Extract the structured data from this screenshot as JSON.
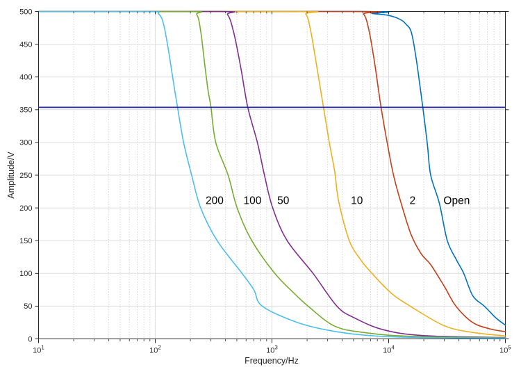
{
  "figure": {
    "background": "#ffffff"
  },
  "chart_data": {
    "type": "line",
    "title": "",
    "xlabel": "Frequency/Hz",
    "ylabel": "Amplitude/V",
    "x_scale": "log",
    "xlim": [
      10,
      100000
    ],
    "ylim": [
      0,
      500
    ],
    "y_ticks": [
      0,
      50,
      100,
      150,
      200,
      250,
      300,
      350,
      400,
      450,
      500
    ],
    "x_tick_base": "10",
    "x_tick_decades": [
      1,
      2,
      3,
      4,
      5
    ],
    "minor_multipliers": [
      2,
      3,
      4,
      5,
      6,
      7,
      8,
      9
    ],
    "grid": {
      "major_color": "#dedede",
      "minor_color": "#c4c4c4",
      "minor_style": "dotted"
    },
    "axis_color": "#262626",
    "legend_position": "none",
    "reference_line": {
      "value": 353.6,
      "color": "#2222b2",
      "description": "horizontal line at 500/sqrt(2)"
    },
    "series": [
      {
        "name": "200",
        "label": "200",
        "color": "#4DBEEE",
        "label_f": 270,
        "label_a": 212,
        "points": [
          [
            10,
            500
          ],
          [
            85,
            500
          ],
          [
            107,
            496
          ],
          [
            118,
            480
          ],
          [
            130,
            440
          ],
          [
            142,
            396
          ],
          [
            155,
            354
          ],
          [
            175,
            300
          ],
          [
            205,
            250
          ],
          [
            245,
            200
          ],
          [
            339,
            150
          ],
          [
            555,
            100
          ],
          [
            700,
            75
          ],
          [
            826,
            50
          ],
          [
            1650,
            25
          ],
          [
            3300,
            12
          ],
          [
            7000,
            5
          ],
          [
            20000,
            2
          ],
          [
            100000,
            1
          ]
        ]
      },
      {
        "name": "100",
        "label": "100",
        "color": "#77AC30",
        "label_f": 570,
        "label_a": 212,
        "points": [
          [
            10,
            500
          ],
          [
            190,
            500
          ],
          [
            227,
            495
          ],
          [
            245,
            470
          ],
          [
            265,
            420
          ],
          [
            283,
            380
          ],
          [
            300,
            354
          ],
          [
            330,
            300
          ],
          [
            421,
            250
          ],
          [
            503,
            200
          ],
          [
            672,
            150
          ],
          [
            1058,
            100
          ],
          [
            1500,
            72
          ],
          [
            2040,
            50
          ],
          [
            3400,
            20
          ],
          [
            6000,
            10
          ],
          [
            15000,
            4
          ],
          [
            100000,
            1.5
          ]
        ]
      },
      {
        "name": "50",
        "label": "50",
        "color": "#7E2F8E",
        "label_f": 1110,
        "label_a": 212,
        "points": [
          [
            10,
            500
          ],
          [
            350,
            500
          ],
          [
            417,
            495
          ],
          [
            470,
            468
          ],
          [
            540,
            415
          ],
          [
            620,
            354
          ],
          [
            750,
            300
          ],
          [
            862,
            250
          ],
          [
            1015,
            200
          ],
          [
            1350,
            150
          ],
          [
            2250,
            100
          ],
          [
            3600,
            50
          ],
          [
            5100,
            32
          ],
          [
            9000,
            14
          ],
          [
            20000,
            5
          ],
          [
            100000,
            2
          ]
        ]
      },
      {
        "name": "10",
        "label": "10",
        "color": "#EDB120",
        "label_f": 4750,
        "label_a": 212,
        "points": [
          [
            10,
            500
          ],
          [
            1600,
            500
          ],
          [
            1950,
            496
          ],
          [
            2150,
            470
          ],
          [
            2400,
            420
          ],
          [
            2760,
            354
          ],
          [
            3100,
            300
          ],
          [
            3450,
            255
          ],
          [
            3730,
            210
          ],
          [
            4600,
            150
          ],
          [
            5800,
            120
          ],
          [
            7200,
            100
          ],
          [
            10500,
            70
          ],
          [
            15300,
            50
          ],
          [
            30000,
            20
          ],
          [
            52000,
            10
          ],
          [
            100000,
            4.5
          ]
        ]
      },
      {
        "name": "2",
        "label": "2",
        "color": "#C2401C",
        "label_f": 15100,
        "label_a": 212,
        "points": [
          [
            10,
            500
          ],
          [
            5000,
            500
          ],
          [
            6100,
            496
          ],
          [
            6800,
            470
          ],
          [
            7600,
            420
          ],
          [
            8600,
            354
          ],
          [
            9700,
            300
          ],
          [
            11000,
            250
          ],
          [
            12800,
            207
          ],
          [
            15500,
            160
          ],
          [
            19000,
            130
          ],
          [
            23000,
            113
          ],
          [
            30000,
            80
          ],
          [
            37700,
            50
          ],
          [
            52500,
            25
          ],
          [
            75000,
            15
          ],
          [
            100000,
            11
          ]
        ]
      },
      {
        "name": "Open",
        "label": "Open",
        "color": "#0072BD",
        "label_f": 29500,
        "label_a": 212,
        "points": [
          [
            10,
            500
          ],
          [
            6000,
            500
          ],
          [
            7200,
            497
          ],
          [
            10000,
            494
          ],
          [
            12500,
            488
          ],
          [
            14000,
            481
          ],
          [
            15600,
            469
          ],
          [
            17000,
            434
          ],
          [
            18300,
            394
          ],
          [
            19600,
            354
          ],
          [
            21500,
            296
          ],
          [
            22900,
            250
          ],
          [
            27200,
            207
          ],
          [
            31800,
            150
          ],
          [
            38000,
            121
          ],
          [
            44000,
            100
          ],
          [
            52500,
            66
          ],
          [
            66000,
            50
          ],
          [
            83000,
            32
          ],
          [
            100000,
            21
          ]
        ]
      }
    ]
  }
}
